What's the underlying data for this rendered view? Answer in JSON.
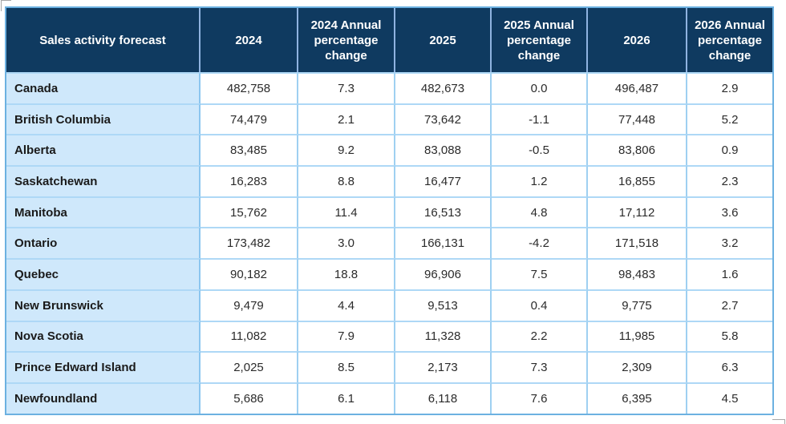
{
  "chart_data": {
    "type": "table",
    "title": "Sales activity forecast",
    "columns": [
      "Sales activity forecast",
      "2024",
      "2024 Annual percentage change",
      "2025",
      "2025 Annual percentage change",
      "2026",
      "2026 Annual percentage change"
    ],
    "rows": [
      {
        "label": "Canada",
        "values": [
          "482,758",
          "7.3",
          "482,673",
          "0.0",
          "496,487",
          "2.9"
        ]
      },
      {
        "label": "British Columbia",
        "values": [
          "74,479",
          "2.1",
          "73,642",
          "-1.1",
          "77,448",
          "5.2"
        ]
      },
      {
        "label": "Alberta",
        "values": [
          "83,485",
          "9.2",
          "83,088",
          "-0.5",
          "83,806",
          "0.9"
        ]
      },
      {
        "label": "Saskatchewan",
        "values": [
          "16,283",
          "8.8",
          "16,477",
          "1.2",
          "16,855",
          "2.3"
        ]
      },
      {
        "label": "Manitoba",
        "values": [
          "15,762",
          "11.4",
          "16,513",
          "4.8",
          "17,112",
          "3.6"
        ]
      },
      {
        "label": "Ontario",
        "values": [
          "173,482",
          "3.0",
          "166,131",
          "-4.2",
          "171,518",
          "3.2"
        ]
      },
      {
        "label": "Quebec",
        "values": [
          "90,182",
          "18.8",
          "96,906",
          "7.5",
          "98,483",
          "1.6"
        ]
      },
      {
        "label": "New Brunswick",
        "values": [
          "9,479",
          "4.4",
          "9,513",
          "0.4",
          "9,775",
          "2.7"
        ]
      },
      {
        "label": "Nova Scotia",
        "values": [
          "11,082",
          "7.9",
          "11,328",
          "2.2",
          "11,985",
          "5.8"
        ]
      },
      {
        "label": "Prince Edward Island",
        "values": [
          "2,025",
          "8.5",
          "2,173",
          "7.3",
          "2,309",
          "6.3"
        ]
      },
      {
        "label": "Newfoundland",
        "values": [
          "5,686",
          "6.1",
          "6,118",
          "7.6",
          "6,395",
          "4.5"
        ]
      }
    ],
    "layout_hints": {
      "header_rows": 1,
      "label_column_bold": true,
      "numeric_alignment": "center",
      "grid": true
    }
  },
  "colors": {
    "header_background": "#0f3a60",
    "header_text": "#ffffff",
    "header_divider": "#8fb3e0",
    "label_column_background": "#cfe8fb",
    "outer_border": "#6cb1e1",
    "grid_horizontal": "#aed8f6",
    "grid_vertical": "#9fd0f1",
    "body_text": "#2b2b2b",
    "crop_mark": "#a6a6a6"
  }
}
